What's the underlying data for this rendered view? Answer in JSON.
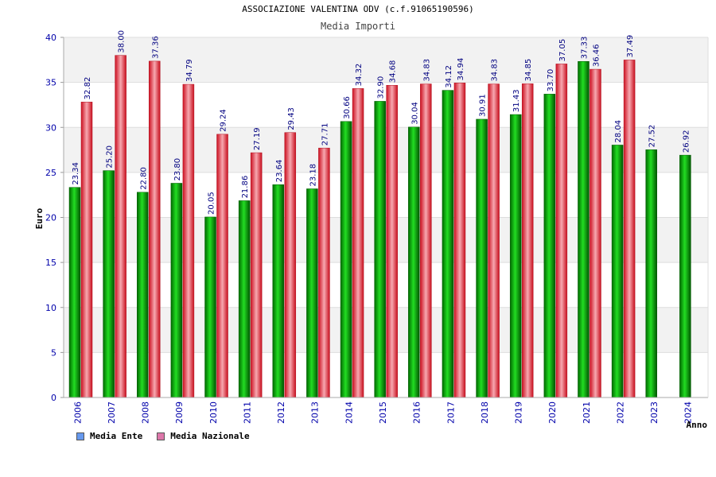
{
  "title": "ASSOCIAZIONE VALENTINA ODV (c.f.91065190596)",
  "chart_data": {
    "type": "bar",
    "title": "Media Importi",
    "ylabel": "Euro",
    "xlabel": "Anno",
    "ylim": [
      0,
      40
    ],
    "yticks": [
      0,
      5,
      10,
      15,
      20,
      25,
      30,
      35,
      40
    ],
    "grid": true,
    "legend_position": "bottom-left",
    "categories": [
      "2006",
      "2007",
      "2008",
      "2009",
      "2010",
      "2011",
      "2012",
      "2013",
      "2014",
      "2015",
      "2016",
      "2017",
      "2018",
      "2019",
      "2020",
      "2021",
      "2022",
      "2023",
      "2024"
    ],
    "series": [
      {
        "name": "Media Ente",
        "color": "#00aa00",
        "legend_color": "#6699ee",
        "values": [
          23.34,
          25.2,
          22.8,
          23.8,
          20.05,
          21.86,
          23.64,
          23.18,
          30.66,
          32.9,
          30.04,
          34.12,
          30.91,
          31.43,
          33.7,
          37.33,
          28.04,
          27.52,
          26.92
        ]
      },
      {
        "name": "Media Nazionale",
        "color": "#e8223a",
        "legend_color": "#dd77aa",
        "values": [
          32.82,
          38.0,
          37.36,
          34.79,
          29.24,
          27.19,
          29.43,
          27.71,
          34.32,
          34.68,
          34.83,
          34.94,
          34.83,
          34.85,
          37.05,
          36.46,
          37.49,
          null,
          null
        ]
      }
    ]
  }
}
